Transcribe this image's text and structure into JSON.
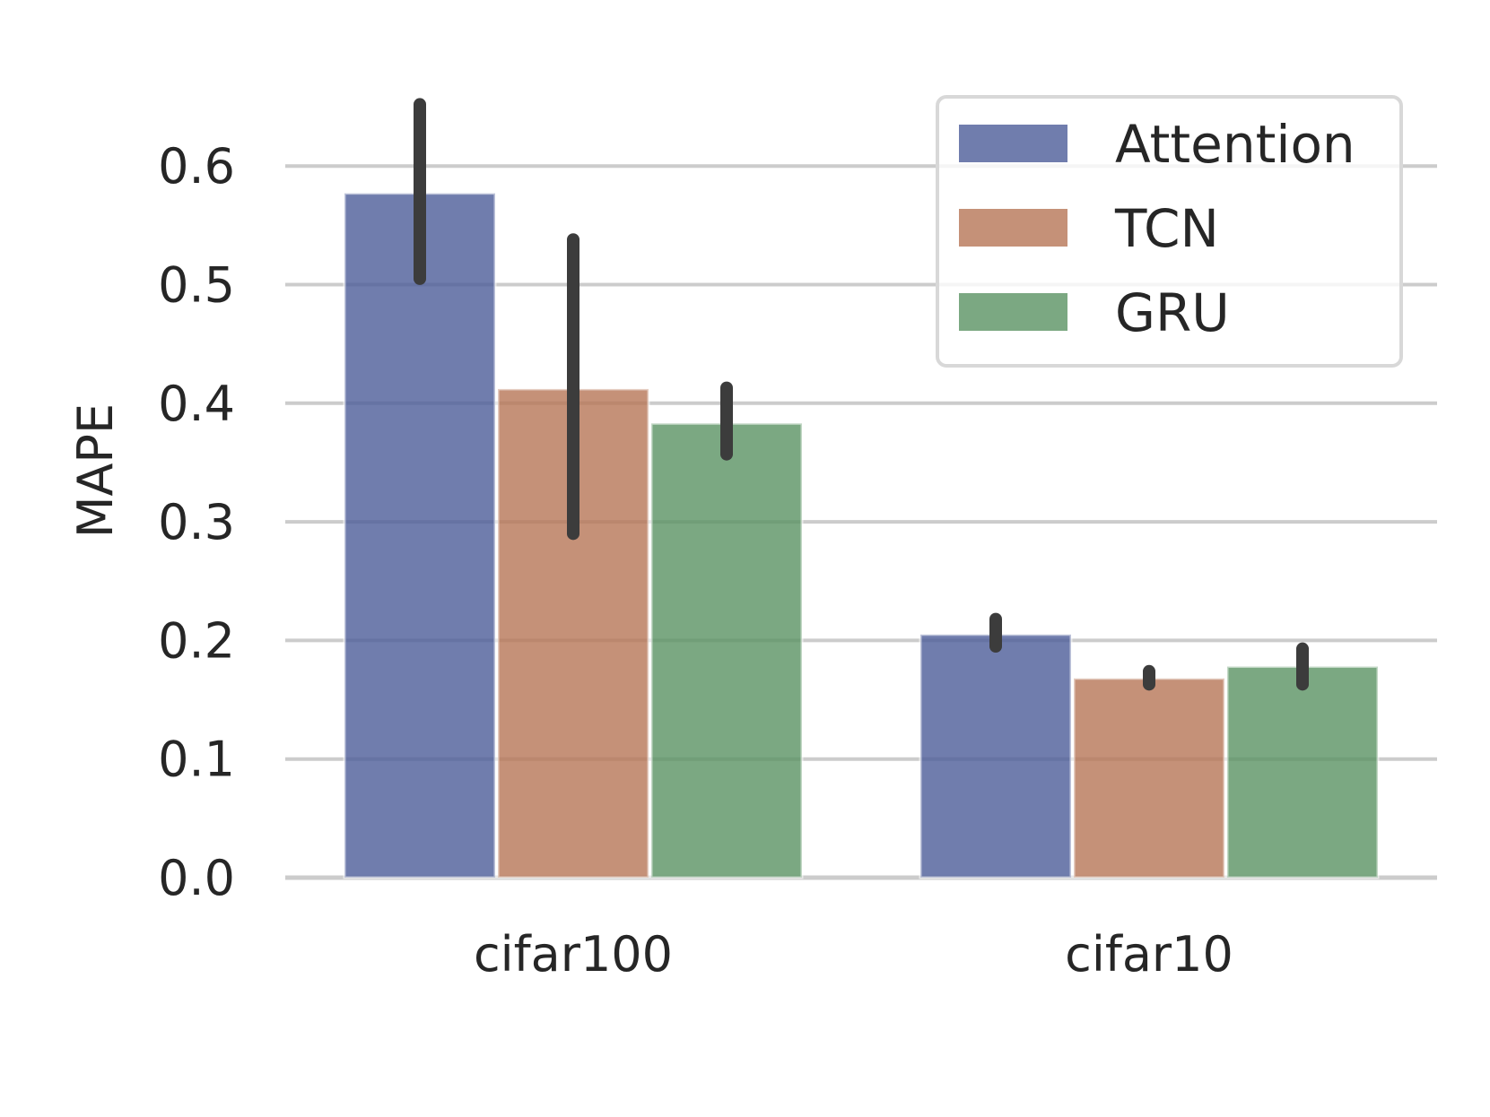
{
  "chart_data": {
    "type": "bar",
    "title": "",
    "xlabel": "",
    "ylabel": "MAPE",
    "ylim": [
      0,
      0.67
    ],
    "yticks": [
      "0.0",
      "0.1",
      "0.2",
      "0.3",
      "0.4",
      "0.5",
      "0.6"
    ],
    "categories": [
      "cifar100",
      "cifar10"
    ],
    "grid": "horizontal",
    "legend_position": "top-right",
    "series": [
      {
        "name": "Attention",
        "color": "#4c5c98",
        "values": [
          0.577,
          0.205
        ],
        "error_low": [
          0.505,
          0.195
        ],
        "error_high": [
          0.652,
          0.218
        ]
      },
      {
        "name": "TCN",
        "color": "#b77556",
        "values": [
          0.412,
          0.168
        ],
        "error_low": [
          0.29,
          0.163
        ],
        "error_high": [
          0.538,
          0.174
        ]
      },
      {
        "name": "GRU",
        "color": "#5a9263",
        "values": [
          0.383,
          0.178
        ],
        "error_low": [
          0.357,
          0.163
        ],
        "error_high": [
          0.413,
          0.193
        ]
      }
    ]
  }
}
